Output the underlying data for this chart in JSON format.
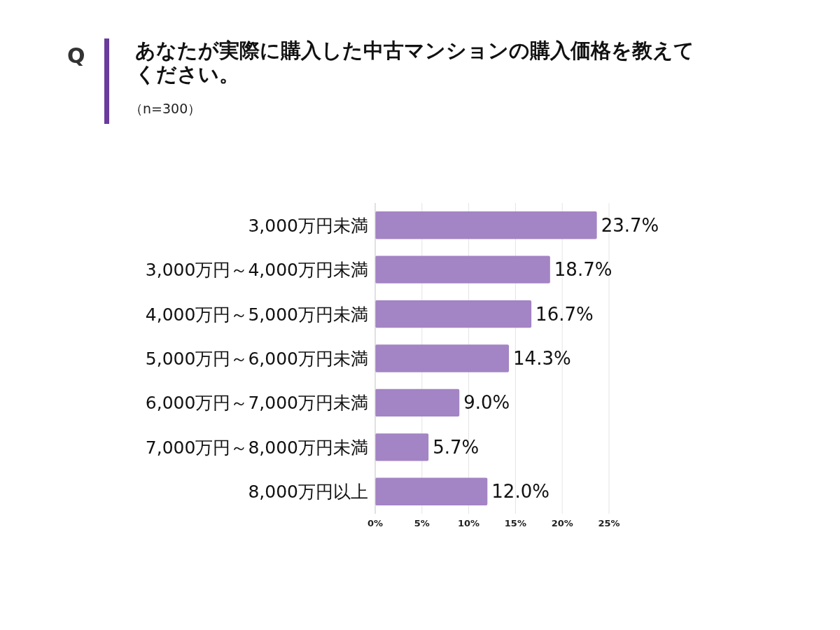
{
  "chart_data": {
    "type": "bar",
    "orientation": "horizontal",
    "title": "あなたが実際に購入した中古マンションの購入価格を教えてください。",
    "subtitle": "（n=300）",
    "annotations": [
      "Q"
    ],
    "categories": [
      "3,000万円未満",
      "3,000万円～4,000万円未満",
      "4,000万円～5,000万円未満",
      "5,000万円～6,000万円未満",
      "6,000万円～7,000万円未満",
      "7,000万円～8,000万円未満",
      "8,000万円以上"
    ],
    "values": [
      23.7,
      18.7,
      16.7,
      14.3,
      9.0,
      5.7,
      12.0
    ],
    "value_labels": [
      "23.7%",
      "18.7%",
      "16.7%",
      "14.3%",
      "9.0%",
      "5.7%",
      "12.0%"
    ],
    "color": "#a384c4",
    "xlim": [
      0,
      25
    ],
    "xticks": [
      {
        "value": 0,
        "label": "0%"
      },
      {
        "value": 5,
        "label": "5%"
      },
      {
        "value": 10,
        "label": "10%"
      },
      {
        "value": 15,
        "label": "15%"
      },
      {
        "value": 20,
        "label": "20%"
      },
      {
        "value": 25,
        "label": "25%"
      }
    ],
    "grid": "x"
  }
}
